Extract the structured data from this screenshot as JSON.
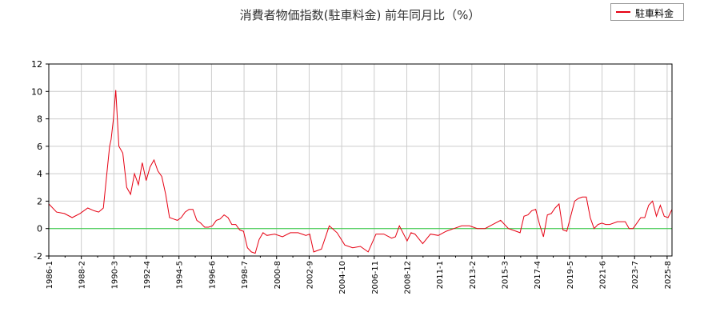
{
  "chart_data": {
    "type": "line",
    "title": "消費者物価指数(駐車料金) 前年同月比（%）",
    "xlabel": "",
    "ylabel": "",
    "ylim": [
      -2,
      12
    ],
    "yticks": [
      "-2",
      "0",
      "2",
      "4",
      "6",
      "8",
      "10",
      "12"
    ],
    "xtick_labels": [
      "1986-1",
      "1988-2",
      "1990-3",
      "1992-4",
      "1994-5",
      "1996-6",
      "1998-7",
      "2000-8",
      "2002-9",
      "2004-10",
      "2006-11",
      "2008-12",
      "2011-1",
      "2013-2",
      "2015-3",
      "2017-4",
      "2019-5",
      "2021-6",
      "2023-7",
      "2025-8"
    ],
    "grid": true,
    "legend_position": "top-right",
    "zero_line_color": "#2ecc40",
    "series": [
      {
        "name": "駐車料金",
        "color": "#e60012",
        "x": [
          1986.0,
          1986.5,
          1987.0,
          1987.5,
          1988.0,
          1988.5,
          1988.9,
          1989.2,
          1989.5,
          1989.9,
          1990.0,
          1990.15,
          1990.3,
          1990.5,
          1990.75,
          1991.0,
          1991.25,
          1991.5,
          1991.75,
          1992.0,
          1992.25,
          1992.5,
          1992.75,
          1993.0,
          1993.25,
          1993.5,
          1993.75,
          1994.0,
          1994.25,
          1994.5,
          1994.75,
          1995.0,
          1995.25,
          1995.5,
          1995.75,
          1996.0,
          1996.25,
          1996.5,
          1996.75,
          1997.0,
          1997.25,
          1997.5,
          1997.75,
          1998.0,
          1998.25,
          1998.5,
          1998.75,
          1999.0,
          1999.25,
          1999.5,
          1999.75,
          2000.0,
          2000.5,
          2001.0,
          2001.5,
          2002.0,
          2002.5,
          2002.75,
          2003.0,
          2003.5,
          2004.0,
          2004.5,
          2005.0,
          2005.5,
          2006.0,
          2006.5,
          2007.0,
          2007.5,
          2008.0,
          2008.25,
          2008.5,
          2009.0,
          2009.25,
          2009.5,
          2010.0,
          2010.5,
          2011.0,
          2011.5,
          2012.0,
          2012.5,
          2013.0,
          2013.5,
          2014.0,
          2014.5,
          2015.0,
          2015.5,
          2016.0,
          2016.25,
          2016.5,
          2016.75,
          2017.0,
          2017.25,
          2017.5,
          2017.75,
          2018.0,
          2018.25,
          2018.5,
          2018.75,
          2019.0,
          2019.25,
          2019.5,
          2019.75,
          2020.0,
          2020.25,
          2020.5,
          2020.75,
          2021.0,
          2021.25,
          2021.5,
          2021.75,
          2022.0,
          2022.5,
          2023.0,
          2023.25,
          2023.5,
          2024.0,
          2024.25,
          2024.5,
          2024.75,
          2025.0,
          2025.25,
          2025.5,
          2025.75,
          2026.0
        ],
        "values": [
          1.8,
          1.2,
          1.1,
          0.8,
          1.1,
          1.5,
          1.3,
          1.2,
          1.5,
          6.0,
          6.5,
          8.0,
          10.1,
          6.0,
          5.5,
          3.0,
          2.5,
          4.0,
          3.2,
          4.8,
          3.5,
          4.5,
          5.0,
          4.2,
          3.8,
          2.5,
          0.8,
          0.7,
          0.6,
          0.8,
          1.2,
          1.4,
          1.4,
          0.6,
          0.4,
          0.1,
          0.1,
          0.2,
          0.6,
          0.7,
          1.0,
          0.8,
          0.3,
          0.3,
          -0.1,
          -0.2,
          -1.4,
          -1.7,
          -1.8,
          -0.8,
          -0.3,
          -0.5,
          -0.4,
          -0.6,
          -0.3,
          -0.3,
          -0.5,
          -0.4,
          -1.7,
          -1.5,
          0.2,
          -0.3,
          -1.2,
          -1.4,
          -1.3,
          -1.7,
          -0.4,
          -0.4,
          -0.7,
          -0.6,
          0.2,
          -0.9,
          -0.3,
          -0.4,
          -1.1,
          -0.4,
          -0.5,
          -0.2,
          0.0,
          0.2,
          0.2,
          0.0,
          0.0,
          0.3,
          0.6,
          0.0,
          -0.2,
          -0.3,
          0.9,
          1.0,
          1.3,
          1.4,
          0.3,
          -0.6,
          1.0,
          1.1,
          1.5,
          1.8,
          -0.1,
          -0.2,
          0.9,
          2.0,
          2.2,
          2.3,
          2.3,
          0.8,
          0.0,
          0.3,
          0.4,
          0.3,
          0.3,
          0.5,
          0.5,
          0.0,
          0.0,
          0.8,
          0.8,
          1.7,
          2.0,
          0.9,
          1.7,
          0.9,
          0.8,
          1.4
        ]
      }
    ]
  }
}
